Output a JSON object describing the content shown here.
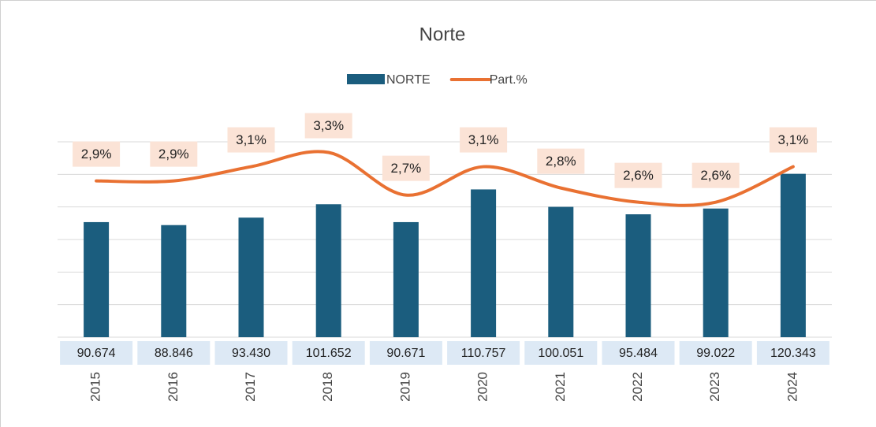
{
  "chart_data": {
    "type": "bar_line",
    "title": "Norte",
    "categories": [
      "2015",
      "2016",
      "2017",
      "2018",
      "2019",
      "2020",
      "2021",
      "2022",
      "2023",
      "2024"
    ],
    "series": [
      {
        "name": "NORTE",
        "type": "bar",
        "color": "#1b5d7e",
        "values": [
          90674,
          88846,
          93430,
          101652,
          90671,
          110757,
          100051,
          95484,
          99022,
          120343
        ],
        "value_labels": [
          "90.674",
          "88.846",
          "93.430",
          "101.652",
          "90.671",
          "110.757",
          "100.051",
          "95.484",
          "99.022",
          "120.343"
        ]
      },
      {
        "name": "Part.%",
        "type": "line",
        "axis": "y2",
        "color": "#e97132",
        "values": [
          2.9,
          2.9,
          3.1,
          3.3,
          2.7,
          3.1,
          2.8,
          2.6,
          2.6,
          3.1
        ],
        "value_labels": [
          "2,9%",
          "2,9%",
          "3,1%",
          "3,3%",
          "2,7%",
          "3,1%",
          "2,8%",
          "2,6%",
          "2,6%",
          "3,1%"
        ]
      }
    ],
    "ylim": [
      20000,
      140000
    ],
    "yticks": [
      20000,
      40000,
      60000,
      80000,
      100000,
      120000,
      140000
    ],
    "y2lim": [
      0.7,
      3.45
    ],
    "grid": true,
    "legend": "top"
  }
}
